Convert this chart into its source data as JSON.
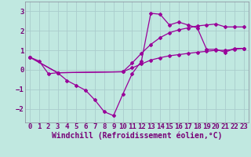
{
  "background_color": "#c0e8e0",
  "grid_color": "#aacccc",
  "line_color": "#990099",
  "xlabel": "Windchill (Refroidissement éolien,°C)",
  "xlabel_fontsize": 7,
  "tick_fontsize": 6.5,
  "xlim": [
    -0.5,
    23.5
  ],
  "ylim": [
    -2.7,
    3.5
  ],
  "yticks": [
    -2,
    -1,
    0,
    1,
    2,
    3
  ],
  "xticks": [
    0,
    1,
    2,
    3,
    4,
    5,
    6,
    7,
    8,
    9,
    10,
    11,
    12,
    13,
    14,
    15,
    16,
    17,
    18,
    19,
    20,
    21,
    22,
    23
  ],
  "line1_x": [
    0,
    1,
    2,
    3,
    4,
    5,
    6,
    7,
    8,
    9,
    10,
    11,
    12,
    13,
    14,
    15,
    16,
    17,
    18,
    19,
    20,
    21,
    22,
    23
  ],
  "line1_y": [
    0.65,
    0.45,
    -0.2,
    -0.15,
    -0.55,
    -0.8,
    -1.05,
    -1.55,
    -2.15,
    -2.35,
    -1.25,
    -0.2,
    0.45,
    2.9,
    2.85,
    2.3,
    2.45,
    2.3,
    2.15,
    1.05,
    1.05,
    0.9,
    1.1,
    1.1
  ],
  "line2_x": [
    0,
    3,
    10,
    11,
    12,
    13,
    14,
    15,
    16,
    17,
    18,
    19,
    20,
    21,
    22,
    23
  ],
  "line2_y": [
    0.65,
    -0.15,
    -0.1,
    0.35,
    0.85,
    1.3,
    1.65,
    1.9,
    2.05,
    2.15,
    2.25,
    2.3,
    2.35,
    2.2,
    2.2,
    2.2
  ],
  "line3_x": [
    0,
    3,
    10,
    11,
    12,
    13,
    14,
    15,
    16,
    17,
    18,
    19,
    20,
    21,
    22,
    23
  ],
  "line3_y": [
    0.65,
    -0.15,
    -0.1,
    0.1,
    0.3,
    0.5,
    0.62,
    0.72,
    0.78,
    0.84,
    0.9,
    0.95,
    1.0,
    1.0,
    1.05,
    1.1
  ]
}
